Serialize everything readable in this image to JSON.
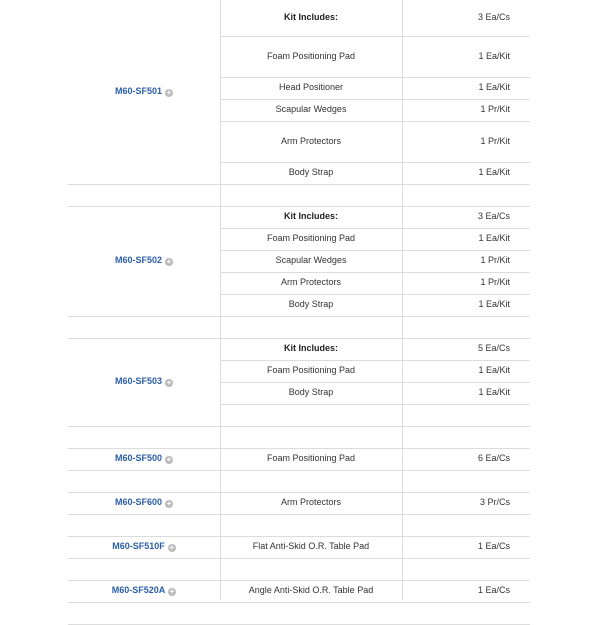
{
  "table": {
    "groups": [
      {
        "sku": "M60-SF501",
        "items": [
          {
            "name": "Kit Includes:",
            "qty": "3 Ea/Cs",
            "header": true
          },
          {
            "name": "Foam Positioning Pad",
            "qty": "1 Ea/Kit"
          },
          {
            "name": "Head Positioner",
            "qty": "1 Ea/Kit"
          },
          {
            "name": "Scapular Wedges",
            "qty": "1 Pr/Kit"
          },
          {
            "name": "Arm Protectors",
            "qty": "1 Pr/Kit"
          },
          {
            "name": "Body Strap",
            "qty": "1 Ea/Kit"
          }
        ]
      },
      {
        "sku": "M60-SF502",
        "items": [
          {
            "name": "Kit Includes:",
            "qty": "3 Ea/Cs",
            "header": true
          },
          {
            "name": "Foam Positioning Pad",
            "qty": "1 Ea/Kit"
          },
          {
            "name": "Scapular Wedges",
            "qty": "1 Pr/Kit"
          },
          {
            "name": "Arm Protectors",
            "qty": "1 Pr/Kit"
          },
          {
            "name": "Body Strap",
            "qty": "1 Ea/Kit"
          }
        ]
      },
      {
        "sku": "M60-SF503",
        "items": [
          {
            "name": "Kit Includes:",
            "qty": "5 Ea/Cs",
            "header": true
          },
          {
            "name": "Foam Positioning Pad",
            "qty": "1 Ea/Kit"
          },
          {
            "name": "Body Strap",
            "qty": "1 Ea/Kit"
          }
        ]
      },
      {
        "sku": "M60-SF500",
        "items": [
          {
            "name": "Foam Positioning Pad",
            "qty": "6 Ea/Cs"
          }
        ]
      },
      {
        "sku": "M60-SF600",
        "items": [
          {
            "name": "Arm Protectors",
            "qty": "3 Pr/Cs"
          }
        ]
      },
      {
        "sku": "M60-SF510F",
        "items": [
          {
            "name": "Flat Anti-Skid O.R. Table Pad",
            "qty": "1 Ea/Cs"
          }
        ]
      },
      {
        "sku": "M60-SF520A",
        "items": [
          {
            "name": "Angle Anti-Skid O.R. Table Pad",
            "qty": "1 Ea/Cs"
          }
        ]
      }
    ],
    "expand_icon": "plus-circle-icon"
  }
}
